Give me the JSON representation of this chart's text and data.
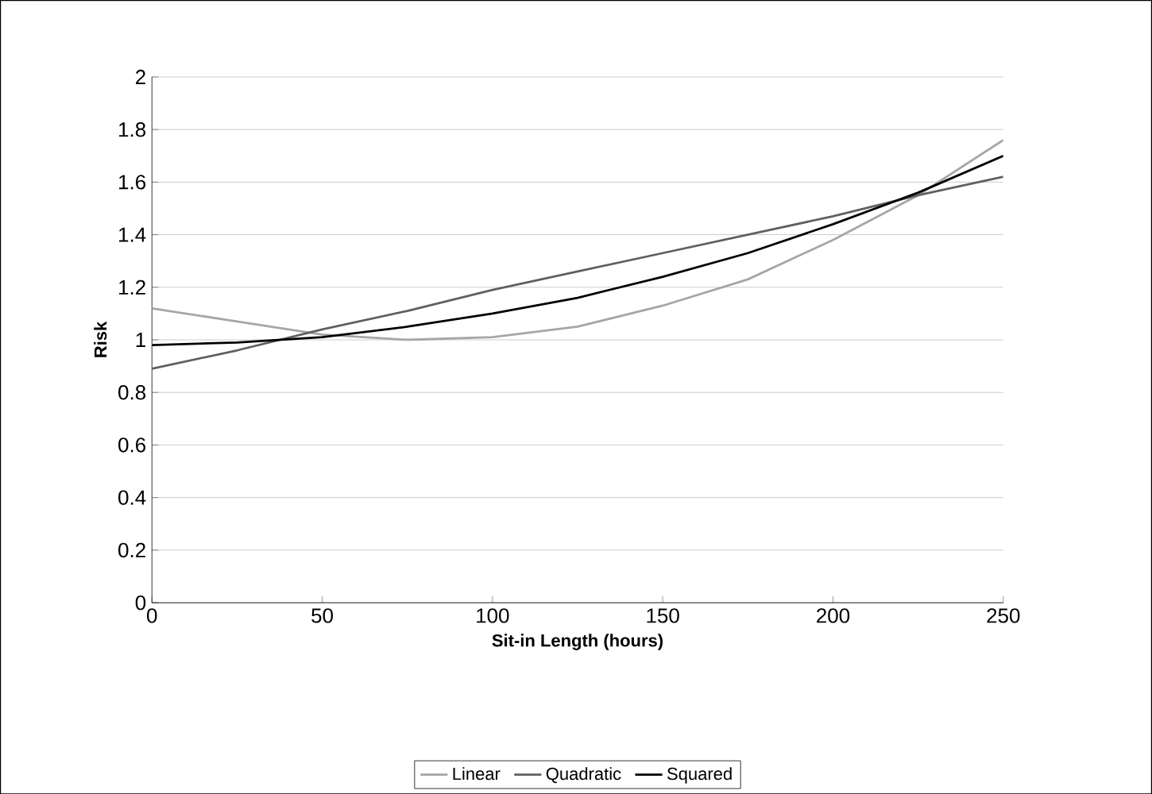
{
  "chart_data": {
    "type": "line",
    "xlabel": "Sit-in Length (hours)",
    "ylabel": "Risk",
    "x": [
      0,
      25,
      50,
      75,
      100,
      125,
      150,
      175,
      200,
      225,
      250
    ],
    "series": [
      {
        "name": "Linear",
        "color": "#a6a6a6",
        "values": [
          1.12,
          1.07,
          1.02,
          1.0,
          1.01,
          1.05,
          1.13,
          1.23,
          1.38,
          1.55,
          1.76
        ]
      },
      {
        "name": "Quadratic",
        "color": "#606060",
        "values": [
          0.89,
          0.96,
          1.04,
          1.11,
          1.19,
          1.26,
          1.33,
          1.4,
          1.47,
          1.55,
          1.62
        ]
      },
      {
        "name": "Squared",
        "color": "#000000",
        "values": [
          0.98,
          0.99,
          1.01,
          1.05,
          1.1,
          1.16,
          1.24,
          1.33,
          1.44,
          1.56,
          1.7
        ]
      }
    ],
    "xlim": [
      0,
      250
    ],
    "xticks": [
      0,
      50,
      100,
      150,
      200,
      250
    ],
    "ylim": [
      0,
      2
    ],
    "yticks": [
      0,
      0.2,
      0.4,
      0.6,
      0.8,
      1,
      1.2,
      1.4,
      1.6,
      1.8,
      2
    ],
    "grid": "y",
    "legend": "bottom",
    "marker": "none",
    "line_style": "solid"
  }
}
